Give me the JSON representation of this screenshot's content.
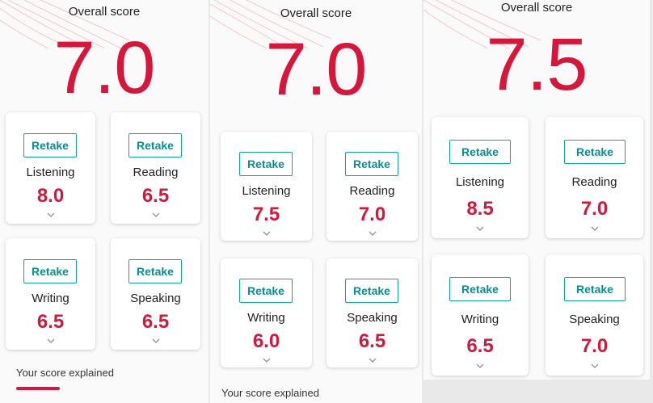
{
  "colors": {
    "accent": "#d9153b",
    "teal": "#0aa6a6",
    "background": "#fafafa"
  },
  "panels": [
    {
      "overall_label": "Overall score",
      "overall_score": "7.0",
      "cards": [
        {
          "retake": "Retake",
          "label": "Listening",
          "score": "8.0"
        },
        {
          "retake": "Retake",
          "label": "Reading",
          "score": "6.5"
        },
        {
          "retake": "Retake",
          "label": "Writing",
          "score": "6.5"
        },
        {
          "retake": "Retake",
          "label": "Speaking",
          "score": "6.5"
        }
      ],
      "explained": "Your score explained"
    },
    {
      "overall_label": "Overall score",
      "overall_score": "7.0",
      "cards": [
        {
          "retake": "Retake",
          "label": "Listening",
          "score": "7.5"
        },
        {
          "retake": "Retake",
          "label": "Reading",
          "score": "7.0"
        },
        {
          "retake": "Retake",
          "label": "Writing",
          "score": "6.0"
        },
        {
          "retake": "Retake",
          "label": "Speaking",
          "score": "6.5"
        }
      ],
      "explained": "Your score explained"
    },
    {
      "overall_label": "Overall score",
      "overall_score": "7.5",
      "cards": [
        {
          "retake": "Retake",
          "label": "Listening",
          "score": "8.5"
        },
        {
          "retake": "Retake",
          "label": "Reading",
          "score": "7.0"
        },
        {
          "retake": "Retake",
          "label": "Writing",
          "score": "6.5"
        },
        {
          "retake": "Retake",
          "label": "Speaking",
          "score": "7.0"
        }
      ]
    }
  ]
}
